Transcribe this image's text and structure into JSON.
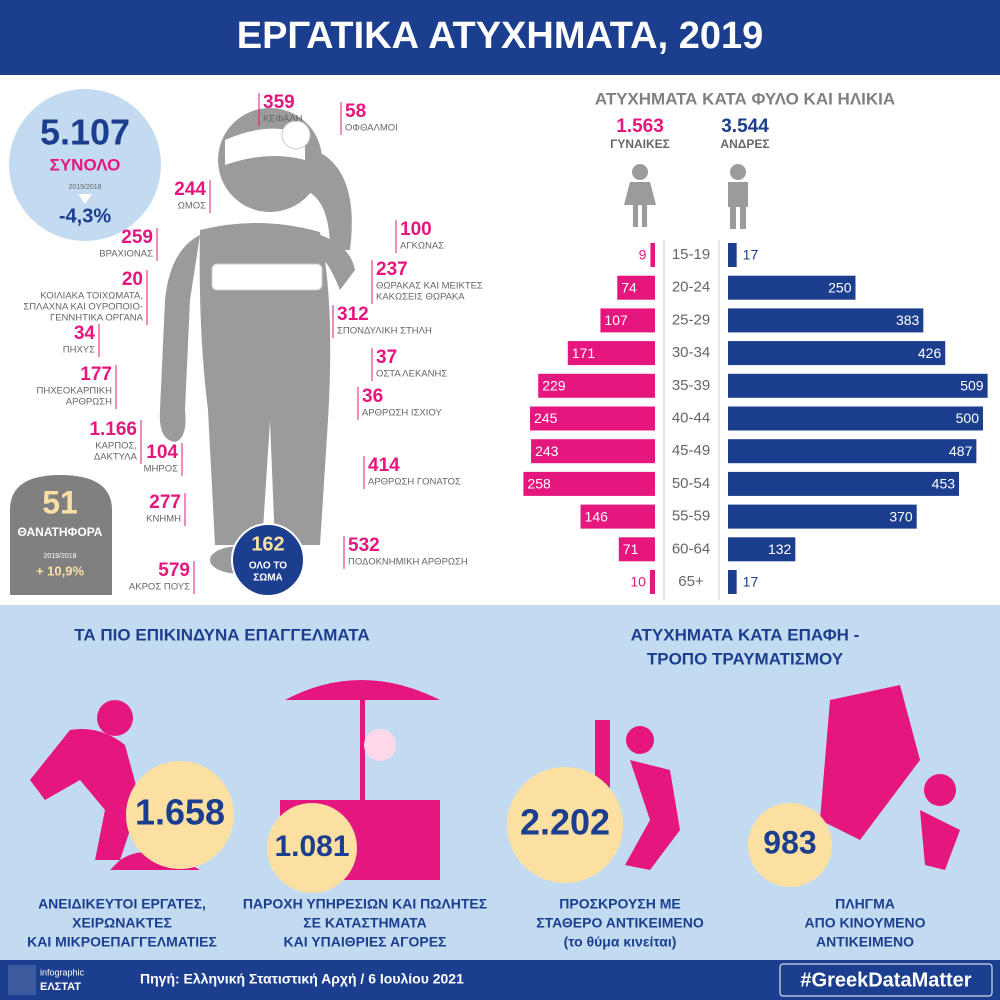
{
  "header": {
    "title": "ΕΡΓΑΤΙΚΑ ΑΤΥΧΗΜΑΤΑ, 2019"
  },
  "total": {
    "value": "5.107",
    "label": "ΣΥΝΟΛΟ",
    "period": "2019/2018",
    "change": "-4,3%"
  },
  "fatal": {
    "value": "51",
    "label": "ΘΑΝΑΤΗΦΟΡΑ",
    "period": "2019/2018",
    "change": "+ 10,9%"
  },
  "whole_body": {
    "value": "162",
    "lines": [
      "ΟΛΟ ΤΟ",
      "ΣΩΜΑ"
    ]
  },
  "body_parts": [
    {
      "value": "359",
      "lines": [
        "ΚΕΦΑΛΗ"
      ]
    },
    {
      "value": "58",
      "lines": [
        "ΟΦΘΑΛΜΟΙ"
      ]
    },
    {
      "value": "244",
      "lines": [
        "ΩΜΟΣ"
      ]
    },
    {
      "value": "259",
      "lines": [
        "ΒΡΑΧΙΟΝΑΣ"
      ]
    },
    {
      "value": "20",
      "lines": [
        "ΚΟΙΛΙΑΚΑ ΤΟΙΧΩΜΑΤΑ,",
        "ΣΠΛΑΧΝΑ ΚΑΙ ΟΥΡΟΠΟΙΟ-",
        "ΓΕΝΝΗΤΙΚΑ ΟΡΓΑΝΑ"
      ]
    },
    {
      "value": "34",
      "lines": [
        "ΠΗΧΥΣ"
      ]
    },
    {
      "value": "177",
      "lines": [
        "ΠΗΧΕΟΚΑΡΠΙΚΗ",
        "ΑΡΘΡΩΣΗ"
      ]
    },
    {
      "value": "1.166",
      "lines": [
        "ΚΑΡΠΟΣ,",
        "ΔΑΚΤΥΛΑ"
      ]
    },
    {
      "value": "104",
      "lines": [
        "ΜΗΡΟΣ"
      ]
    },
    {
      "value": "277",
      "lines": [
        "ΚΝΗΜΗ"
      ]
    },
    {
      "value": "579",
      "lines": [
        "ΑΚΡΟΣ ΠΟΥΣ"
      ]
    },
    {
      "value": "100",
      "lines": [
        "ΑΓΚΩΝΑΣ"
      ]
    },
    {
      "value": "237",
      "lines": [
        "ΘΩΡΑΚΑΣ ΚΑΙ ΜΕΙΚΤΕΣ",
        "ΚΑΚΩΣΕΙΣ ΘΩΡΑΚΑ"
      ]
    },
    {
      "value": "312",
      "lines": [
        "ΣΠΟΝΔΥΛΙΚΗ ΣΤΗΛΗ"
      ]
    },
    {
      "value": "37",
      "lines": [
        "ΟΣΤΑ ΛΕΚΑΝΗΣ"
      ]
    },
    {
      "value": "36",
      "lines": [
        "ΑΡΘΡΩΣΗ ΙΣΧΙΟΥ"
      ]
    },
    {
      "value": "414",
      "lines": [
        "ΑΡΘΡΩΣΗ ΓΟΝΑΤΟΣ"
      ]
    },
    {
      "value": "532",
      "lines": [
        "ΠΟΔΟΚΝΗΜΙΚΗ ΑΡΘΡΩΣΗ"
      ]
    }
  ],
  "chart_data": {
    "type": "bar",
    "title": "ΑΤΥΧΗΜΑΤΑ ΚΑΤΑ ΦΥΛΟ ΚΑΙ ΗΛΙΚΙΑ",
    "categories": [
      "15-19",
      "20-24",
      "25-29",
      "30-34",
      "35-39",
      "40-44",
      "45-49",
      "50-54",
      "55-59",
      "60-64",
      "65+"
    ],
    "series": [
      {
        "name": "ΓΥΝΑΙΚΕΣ",
        "total": "1.563",
        "color": "#e6167f",
        "values": [
          9,
          74,
          107,
          171,
          229,
          245,
          243,
          258,
          146,
          71,
          10
        ]
      },
      {
        "name": "ΑΝΔΡΕΣ",
        "total": "3.544",
        "color": "#1c3e8e",
        "values": [
          17,
          250,
          383,
          426,
          509,
          500,
          487,
          453,
          370,
          132,
          17
        ]
      }
    ]
  },
  "occupations": {
    "title": "ΤΑ ΠΙΟ ΕΠΙΚΙΝΔΥΝΑ ΕΠΑΓΓΕΛΜΑΤΑ",
    "items": [
      {
        "value": "1.658",
        "lines": [
          "ΑΝΕΙΔΙΚΕΥΤΟΙ ΕΡΓΑΤΕΣ,",
          "ΧΕΙΡΩΝΑΚΤΕΣ",
          "ΚΑΙ ΜΙΚΡΟΕΠΑΓΓΕΛΜΑΤΙΕΣ"
        ]
      },
      {
        "value": "1.081",
        "lines": [
          "ΠΑΡΟΧΗ ΥΠΗΡΕΣΙΩΝ ΚΑΙ ΠΩΛΗΤΕΣ",
          "ΣΕ ΚΑΤΑΣΤΗΜΑΤΑ",
          "ΚΑΙ ΥΠΑΙΘΡΙΕΣ ΑΓΟΡΕΣ"
        ]
      }
    ]
  },
  "causes": {
    "title_lines": [
      "ΑΤΥΧΗΜΑΤΑ ΚΑΤΑ ΕΠΑΦΗ -",
      "ΤΡΟΠΟ ΤΡΑΥΜΑΤΙΣΜΟΥ"
    ],
    "items": [
      {
        "value": "2.202",
        "lines": [
          "ΠΡΟΣΚΡΟΥΣΗ ΜΕ",
          "ΣΤΑΘΕΡΟ ΑΝΤΙΚΕΙΜΕΝΟ",
          "(το θύμα κινείται)"
        ]
      },
      {
        "value": "983",
        "lines": [
          "ΠΛΗΓΜΑ",
          "ΑΠΟ ΚΙΝΟΥΜΕΝΟ",
          "ΑΝΤΙΚΕΙΜΕΝΟ"
        ]
      }
    ]
  },
  "footer": {
    "logo_top": "infographic",
    "logo_bottom": "ΕΛΣΤΑΤ",
    "source": "Πηγή: Ελληνική Στατιστική Αρχή  / 6 Ιουλίου 2021",
    "hashtag": "#GreekDataMatter"
  }
}
